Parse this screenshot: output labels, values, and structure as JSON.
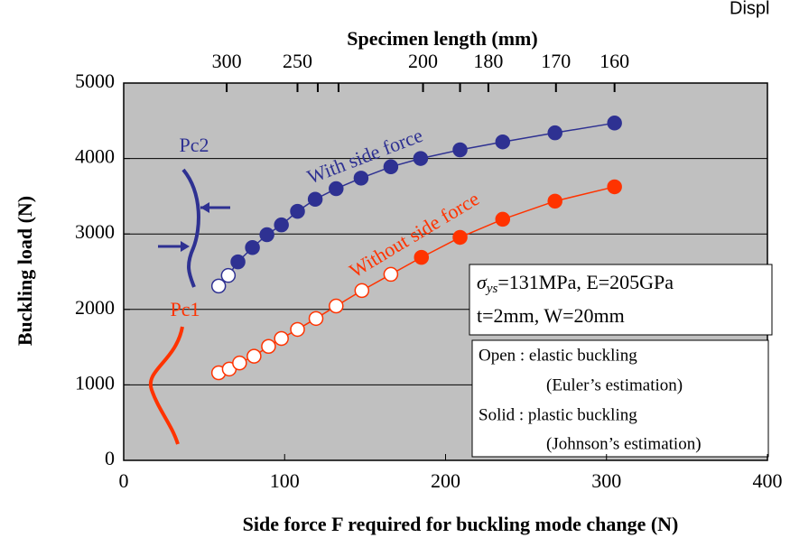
{
  "chart_data": {
    "type": "line",
    "corner_text": "Displ",
    "x2_title": "Specimen length (mm)",
    "xlabel": "Side force F required for buckling mode change (N)",
    "ylabel": "Buckling load (N)",
    "xlim": [
      0,
      400
    ],
    "xticks": [
      0,
      100,
      200,
      300,
      400
    ],
    "ylim": [
      0,
      5000
    ],
    "yticks": [
      0,
      1000,
      2000,
      3000,
      4000,
      5000
    ],
    "x2ticks": [
      300,
      250,
      null,
      null,
      200,
      null,
      180,
      170,
      160
    ],
    "x2tick_positions": [
      64,
      108,
      120.6,
      133.5,
      186,
      209,
      226.6,
      268.6,
      305
    ],
    "grid": true,
    "series": [
      {
        "name": "With side force",
        "color": "#2e3192",
        "x": [
          59,
          65,
          71,
          80,
          89,
          98,
          108,
          119,
          132,
          147.5,
          166,
          184.5,
          209,
          235.5,
          268,
          305
        ],
        "values": [
          2310,
          2450,
          2630,
          2820,
          2990,
          3120,
          3300,
          3460,
          3600,
          3740,
          3890,
          4000,
          4115,
          4220,
          4340,
          4470
        ],
        "filled": [
          false,
          false,
          true,
          true,
          true,
          true,
          true,
          true,
          true,
          true,
          true,
          true,
          true,
          true,
          true,
          true
        ]
      },
      {
        "name": "Without side force",
        "color": "#ff3300",
        "x": [
          59,
          65.6,
          72,
          81,
          90,
          98,
          108,
          119.5,
          132,
          148,
          166,
          185,
          209,
          235.5,
          268,
          305
        ],
        "values": [
          1160,
          1210,
          1290,
          1380,
          1510,
          1615,
          1735,
          1880,
          2045,
          2250,
          2465,
          2690,
          2955,
          3195,
          3435,
          3625
        ],
        "filled": [
          false,
          false,
          false,
          false,
          false,
          false,
          false,
          false,
          false,
          false,
          false,
          true,
          true,
          true,
          true,
          true
        ]
      }
    ],
    "annotations": {
      "pc2": "Pc2",
      "pc1": "Pc1"
    },
    "box1": {
      "sigma": "σ",
      "sub": "ys",
      "line1": "=131MPa, E=205GPa",
      "line2": "t=2mm, W=20mm"
    },
    "box2": [
      "Open : elastic buckling",
      "(Euler’s estimation)",
      "Solid : plastic buckling",
      "(Johnson’s estimation)"
    ]
  }
}
